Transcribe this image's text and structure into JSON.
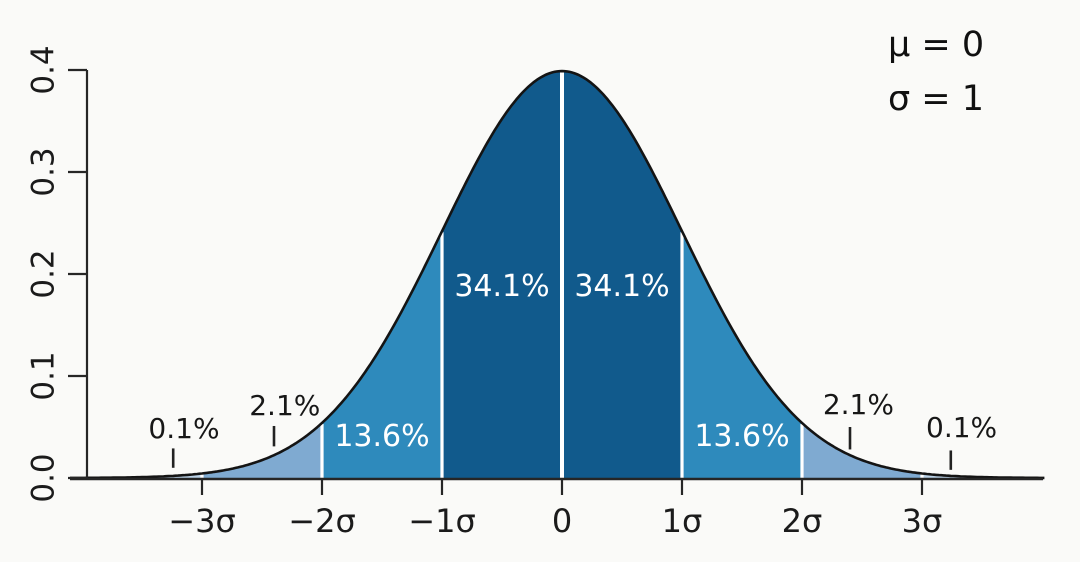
{
  "figure": {
    "description": "Standard normal distribution bell curve with shaded standard deviation bands"
  },
  "legend": {
    "line1": "μ = 0",
    "line2": "σ = 1"
  },
  "chart_data": {
    "type": "area",
    "title": "",
    "xlabel": "",
    "ylabel": "",
    "distribution": "standard normal probability density, mu = 0, sigma = 1",
    "xlim_sigma": [
      -4.1,
      4.02
    ],
    "ylim": [
      0,
      0.4
    ],
    "background": "#FAFAF8",
    "curve_color": "#141414",
    "axis_color": "#262626",
    "separator_color": "#FFFFFF",
    "x_axis": {
      "ticks": [
        {
          "label": "−3σ",
          "sigma": -3
        },
        {
          "label": "−2σ",
          "sigma": -2
        },
        {
          "label": "−1σ",
          "sigma": -1
        },
        {
          "label": "0",
          "sigma": 0
        },
        {
          "label": "1σ",
          "sigma": 1
        },
        {
          "label": "2σ",
          "sigma": 2
        },
        {
          "label": "3σ",
          "sigma": 3
        }
      ]
    },
    "y_axis": {
      "ticks": [
        {
          "label": "0.0",
          "value": 0.0
        },
        {
          "label": "0.1",
          "value": 0.1
        },
        {
          "label": "0.2",
          "value": 0.2
        },
        {
          "label": "0.3",
          "value": 0.3
        },
        {
          "label": "0.4",
          "value": 0.4
        }
      ]
    },
    "regions": [
      {
        "from_sigma": -4.1,
        "to_sigma": -3,
        "percent": "0.1%",
        "value_percent": 0.1,
        "color": "#BCD3E8"
      },
      {
        "from_sigma": -3,
        "to_sigma": -2,
        "percent": "2.1%",
        "value_percent": 2.1,
        "color": "#7FAAD1"
      },
      {
        "from_sigma": -2,
        "to_sigma": -1,
        "percent": "13.6%",
        "value_percent": 13.6,
        "color": "#2E8ABC"
      },
      {
        "from_sigma": -1,
        "to_sigma": 0,
        "percent": "34.1%",
        "value_percent": 34.1,
        "color": "#115A8C"
      },
      {
        "from_sigma": 0,
        "to_sigma": 1,
        "percent": "34.1%",
        "value_percent": 34.1,
        "color": "#115A8C"
      },
      {
        "from_sigma": 1,
        "to_sigma": 2,
        "percent": "13.6%",
        "value_percent": 13.6,
        "color": "#2E8ABC"
      },
      {
        "from_sigma": 2,
        "to_sigma": 3,
        "percent": "2.1%",
        "value_percent": 2.1,
        "color": "#7FAAD1"
      },
      {
        "from_sigma": 3,
        "to_sigma": 4.02,
        "percent": "0.1%",
        "value_percent": 0.1,
        "color": "#BCD3E8"
      }
    ],
    "separators_sigma": [
      -3,
      -2,
      -1,
      0,
      1,
      2,
      3
    ],
    "labels": [
      {
        "text": "34.1%",
        "sigma": -0.5,
        "density": 0.187,
        "style": "inside"
      },
      {
        "text": "34.1%",
        "sigma": 0.5,
        "density": 0.187,
        "style": "inside"
      },
      {
        "text": "13.6%",
        "sigma": -1.5,
        "density": 0.04,
        "style": "inside"
      },
      {
        "text": "13.6%",
        "sigma": 1.5,
        "density": 0.04,
        "style": "inside"
      },
      {
        "text": "2.1%",
        "sigma": -2.31,
        "density": 0.0705,
        "style": "outside",
        "tick_sigma": -2.4,
        "tick_from": 0.031,
        "tick_to": 0.051
      },
      {
        "text": "2.1%",
        "sigma": 2.47,
        "density": 0.072,
        "style": "outside",
        "tick_sigma": 2.4,
        "tick_from": 0.028,
        "tick_to": 0.05
      },
      {
        "text": "0.1%",
        "sigma": -3.15,
        "density": 0.048,
        "style": "outside",
        "tick_sigma": -3.24,
        "tick_from": 0.01,
        "tick_to": 0.029
      },
      {
        "text": "0.1%",
        "sigma": 3.33,
        "density": 0.049,
        "style": "outside",
        "tick_sigma": 3.24,
        "tick_from": 0.008,
        "tick_to": 0.027
      }
    ]
  }
}
